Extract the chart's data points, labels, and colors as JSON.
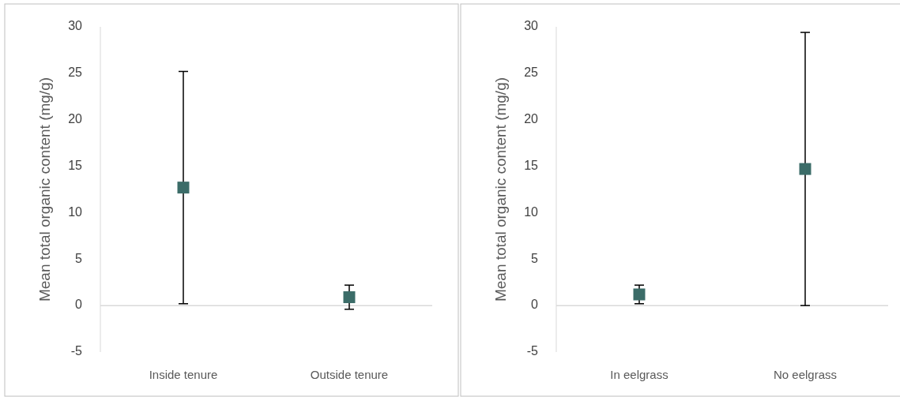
{
  "chart_data": [
    {
      "type": "scatter",
      "ylabel": "Mean total organic content (mg/g)",
      "categories": [
        "Inside tenure",
        "Outside tenure"
      ],
      "values": [
        12.7,
        0.9
      ],
      "errors": [
        12.5,
        1.3
      ],
      "color": "#3b6c68",
      "marker": "square",
      "ylim": [
        -5,
        30
      ],
      "yticks": [
        -5,
        0,
        5,
        10,
        15,
        20,
        25,
        30
      ]
    },
    {
      "type": "scatter",
      "ylabel": "Mean total organic content (mg/g)",
      "categories": [
        "In eelgrass",
        "No eelgrass"
      ],
      "values": [
        1.2,
        14.7
      ],
      "errors": [
        1.0,
        14.7
      ],
      "color": "#3b6c68",
      "marker": "square",
      "ylim": [
        -5,
        30
      ],
      "yticks": [
        -5,
        0,
        5,
        10,
        15,
        20,
        25,
        30
      ]
    }
  ]
}
